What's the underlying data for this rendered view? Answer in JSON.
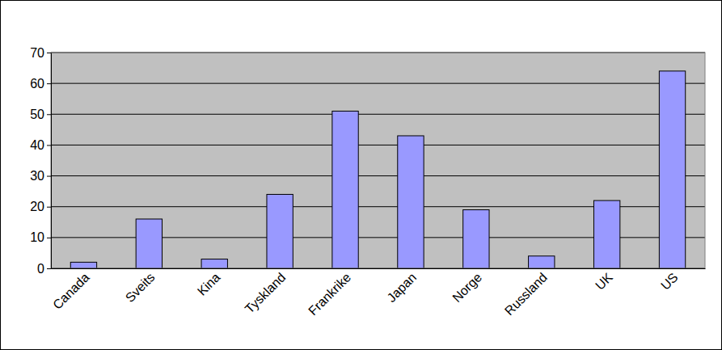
{
  "chart_data": {
    "type": "bar",
    "categories": [
      "Canada",
      "Sveits",
      "Kina",
      "Tyskland",
      "Frankrike",
      "Japan",
      "Norge",
      "Russland",
      "UK",
      "US"
    ],
    "values": [
      2,
      16,
      3,
      24,
      51,
      43,
      19,
      4,
      22,
      64
    ],
    "color": "#9999ff",
    "ylim": [
      0,
      70
    ],
    "yticks": [
      0,
      10,
      20,
      30,
      40,
      50,
      60,
      70
    ],
    "grid": true
  }
}
